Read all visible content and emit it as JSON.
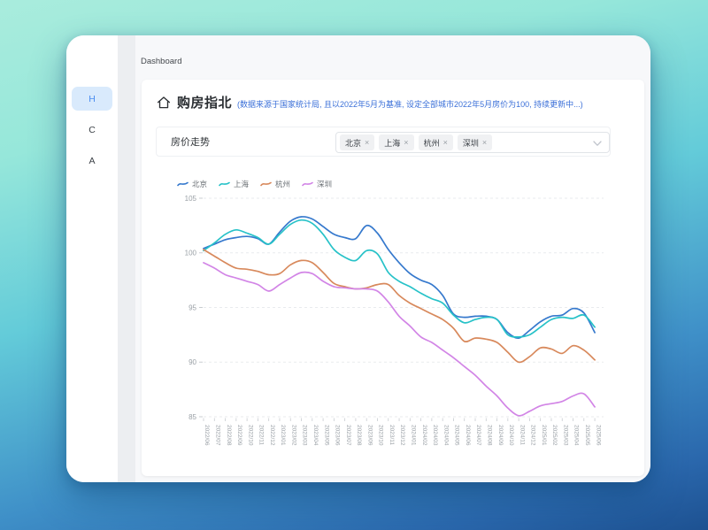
{
  "window": {
    "breadcrumb": "Dashboard"
  },
  "sidebar": {
    "items": [
      {
        "label": "H",
        "active": true
      },
      {
        "label": "C",
        "active": false
      },
      {
        "label": "A",
        "active": false
      }
    ]
  },
  "page": {
    "title": "购房指北",
    "title_note": "(数据来源于国家统计局, 且以2022年5月为基准, 设定全部城市2022年5月房价为100, 持续更新中...)"
  },
  "filter": {
    "label": "房价走势",
    "selected_cities": [
      "北京",
      "上海",
      "杭州",
      "深圳"
    ],
    "remove_icon": "×",
    "chevron_icon": "chevron-down"
  },
  "colors": {
    "note_blue": "#3a6fd8",
    "active_item_bg": "#d9eafc",
    "active_item_text": "#4a8df0",
    "axis_label": "#9aa0a6",
    "grid_line": "#e9ebee"
  },
  "chart_data": {
    "type": "line",
    "title": "房价走势",
    "x": [
      "2022/06",
      "2022/07",
      "2022/08",
      "2022/09",
      "2022/10",
      "2022/11",
      "2022/12",
      "2023/01",
      "2023/02",
      "2023/03",
      "2023/04",
      "2023/05",
      "2023/06",
      "2023/07",
      "2023/08",
      "2023/09",
      "2023/10",
      "2023/11",
      "2023/12",
      "2024/01",
      "2024/02",
      "2024/03",
      "2024/04",
      "2024/05",
      "2024/06",
      "2024/07",
      "2024/08",
      "2024/09",
      "2024/10",
      "2024/11",
      "2024/12",
      "2025/01",
      "2025/02",
      "2025/03",
      "2025/04",
      "2025/05",
      "2025/06"
    ],
    "series": [
      {
        "name": "北京",
        "color": "#3679cd",
        "values": [
          100.4,
          100.8,
          101.2,
          101.4,
          101.5,
          101.3,
          100.8,
          101.9,
          102.9,
          103.3,
          103.1,
          102.4,
          101.7,
          101.4,
          101.3,
          102.5,
          101.8,
          100.3,
          99.1,
          98.1,
          97.5,
          97.1,
          96.1,
          94.4,
          94.1,
          94.2,
          94.2,
          93.9,
          92.7,
          92.2,
          92.9,
          93.7,
          94.2,
          94.3,
          94.9,
          94.5,
          92.7
        ]
      },
      {
        "name": "上海",
        "color": "#27c2c8",
        "values": [
          100.2,
          100.9,
          101.7,
          102.1,
          101.8,
          101.4,
          100.8,
          101.7,
          102.6,
          103.0,
          102.7,
          101.7,
          100.3,
          99.6,
          99.3,
          100.2,
          99.9,
          98.2,
          97.4,
          96.9,
          96.3,
          95.8,
          95.4,
          94.3,
          93.6,
          93.9,
          94.1,
          93.9,
          92.5,
          92.3,
          92.5,
          93.2,
          93.9,
          94.1,
          94.0,
          94.3,
          93.2
        ]
      },
      {
        "name": "杭州",
        "color": "#d8895c",
        "values": [
          100.3,
          99.7,
          99.1,
          98.6,
          98.5,
          98.3,
          98.0,
          98.1,
          98.9,
          99.3,
          99.1,
          98.2,
          97.2,
          96.9,
          96.7,
          96.8,
          97.1,
          97.1,
          96.1,
          95.4,
          94.9,
          94.4,
          93.9,
          93.1,
          91.9,
          92.2,
          92.1,
          91.8,
          90.9,
          90.0,
          90.5,
          91.3,
          91.2,
          90.8,
          91.5,
          91.1,
          90.2
        ]
      },
      {
        "name": "深圳",
        "color": "#d285e6",
        "values": [
          99.1,
          98.6,
          98.0,
          97.7,
          97.4,
          97.1,
          96.5,
          97.1,
          97.7,
          98.2,
          98.1,
          97.4,
          96.9,
          96.8,
          96.7,
          96.7,
          96.5,
          95.5,
          94.2,
          93.3,
          92.3,
          91.8,
          91.1,
          90.4,
          89.6,
          88.8,
          87.8,
          86.9,
          85.8,
          85.1,
          85.5,
          86.0,
          86.2,
          86.4,
          86.9,
          87.1,
          85.9
        ]
      }
    ],
    "ylim": [
      85,
      105
    ],
    "yticks": [
      85,
      90,
      95,
      100,
      105
    ],
    "legend_position": "top-left",
    "grid": "dashed-horizontal",
    "x_label_rotate": 90
  }
}
